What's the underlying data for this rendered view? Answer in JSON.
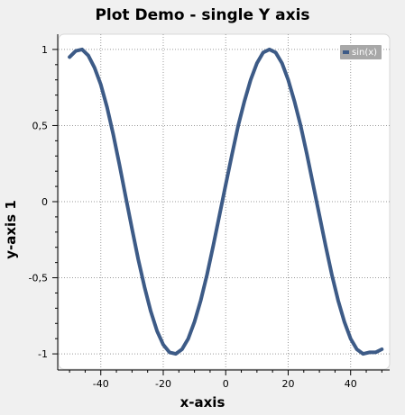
{
  "chart_data": {
    "type": "line",
    "title": "Plot Demo - single Y axis",
    "xlabel": "x-axis",
    "ylabel": "y-axis 1",
    "xlim": [
      -53.5,
      52.5
    ],
    "ylim": [
      -1.1,
      1.1
    ],
    "xticks": [
      -40,
      -20,
      0,
      20,
      40
    ],
    "xtick_labels": [
      "-40",
      "-20",
      "0",
      "20",
      "40"
    ],
    "yticks": [
      -1,
      -0.5,
      0,
      0.5,
      1
    ],
    "ytick_labels": [
      "-1",
      "-0,5",
      "0",
      "0,5",
      "1"
    ],
    "grid": true,
    "legend_position": "top-right",
    "series": [
      {
        "name": "sin(x)",
        "color": "#3d5b87",
        "x": [
          -50,
          -48,
          -46,
          -44,
          -42,
          -40,
          -38,
          -36,
          -34,
          -32,
          -30,
          -28,
          -26,
          -24,
          -22,
          -20,
          -18,
          -16,
          -14,
          -12,
          -10,
          -8,
          -6,
          -4,
          -2,
          0,
          2,
          4,
          6,
          8,
          10,
          12,
          14,
          16,
          18,
          20,
          22,
          24,
          26,
          28,
          30,
          32,
          34,
          36,
          38,
          40,
          42,
          44,
          46,
          48,
          50
        ],
        "y": [
          0.95,
          0.99,
          1.0,
          0.96,
          0.88,
          0.77,
          0.62,
          0.44,
          0.24,
          0.03,
          -0.18,
          -0.38,
          -0.56,
          -0.72,
          -0.85,
          -0.94,
          -0.99,
          -1.0,
          -0.97,
          -0.9,
          -0.79,
          -0.65,
          -0.48,
          -0.29,
          -0.09,
          0.11,
          0.31,
          0.5,
          0.66,
          0.8,
          0.91,
          0.98,
          1.0,
          0.98,
          0.91,
          0.8,
          0.66,
          0.5,
          0.31,
          0.11,
          -0.09,
          -0.29,
          -0.48,
          -0.65,
          -0.79,
          -0.9,
          -0.97,
          -1.0,
          -0.99,
          -0.99,
          -0.97
        ]
      }
    ]
  }
}
